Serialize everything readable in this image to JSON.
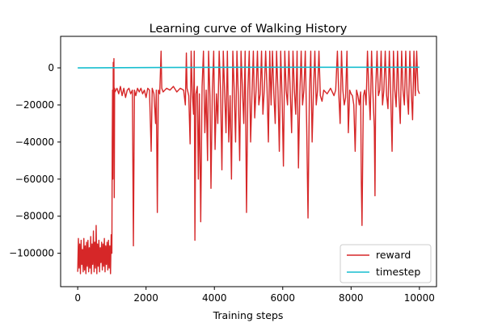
{
  "chart_data": {
    "type": "line",
    "title": "Learning curve of Walking History",
    "xlabel": "Training steps",
    "ylabel": "",
    "xlim": [
      -500,
      10500
    ],
    "ylim": [
      -118000,
      17000
    ],
    "xticks": [
      0,
      2000,
      4000,
      6000,
      8000,
      10000
    ],
    "yticks": [
      0,
      -20000,
      -40000,
      -60000,
      -80000,
      -100000
    ],
    "ytick_labels": [
      "0",
      "−20000",
      "−40000",
      "−60000",
      "−80000",
      "−100000"
    ],
    "grid": false,
    "legend_position": "lower-right",
    "series": [
      {
        "name": "reward",
        "color": "#d62728",
        "points": [
          [
            0,
            -110000
          ],
          [
            20,
            -92000
          ],
          [
            40,
            -108000
          ],
          [
            60,
            -95000
          ],
          [
            80,
            -111000
          ],
          [
            100,
            -93000
          ],
          [
            120,
            -106000
          ],
          [
            140,
            -98000
          ],
          [
            160,
            -110000
          ],
          [
            180,
            -92000
          ],
          [
            200,
            -109000
          ],
          [
            220,
            -96000
          ],
          [
            240,
            -111000
          ],
          [
            260,
            -94000
          ],
          [
            280,
            -107000
          ],
          [
            300,
            -93000
          ],
          [
            320,
            -110000
          ],
          [
            340,
            -97000
          ],
          [
            360,
            -108000
          ],
          [
            380,
            -91000
          ],
          [
            400,
            -111000
          ],
          [
            420,
            -95000
          ],
          [
            440,
            -106000
          ],
          [
            460,
            -88000
          ],
          [
            480,
            -110000
          ],
          [
            500,
            -94000
          ],
          [
            520,
            -108000
          ],
          [
            540,
            -85000
          ],
          [
            560,
            -111000
          ],
          [
            580,
            -95000
          ],
          [
            600,
            -107000
          ],
          [
            620,
            -93000
          ],
          [
            640,
            -110000
          ],
          [
            660,
            -97000
          ],
          [
            680,
            -105000
          ],
          [
            700,
            -94000
          ],
          [
            720,
            -109000
          ],
          [
            740,
            -95000
          ],
          [
            760,
            -107000
          ],
          [
            780,
            -92000
          ],
          [
            800,
            -110000
          ],
          [
            820,
            -96000
          ],
          [
            840,
            -106000
          ],
          [
            860,
            -94000
          ],
          [
            880,
            -109000
          ],
          [
            900,
            -93000
          ],
          [
            920,
            -108000
          ],
          [
            940,
            -96000
          ],
          [
            960,
            -111000
          ],
          [
            980,
            -90000
          ],
          [
            1000,
            -100000
          ],
          [
            1010,
            -40000
          ],
          [
            1020,
            -12000
          ],
          [
            1030,
            -60000
          ],
          [
            1040,
            3000
          ],
          [
            1050,
            -30000
          ],
          [
            1060,
            5000
          ],
          [
            1070,
            -70000
          ],
          [
            1080,
            -11000
          ],
          [
            1090,
            -13000
          ],
          [
            1150,
            -11000
          ],
          [
            1200,
            -14000
          ],
          [
            1250,
            -10000
          ],
          [
            1300,
            -15000
          ],
          [
            1350,
            -11000
          ],
          [
            1400,
            -16000
          ],
          [
            1450,
            -12000
          ],
          [
            1500,
            -11000
          ],
          [
            1550,
            -14000
          ],
          [
            1600,
            -12000
          ],
          [
            1630,
            -96000
          ],
          [
            1660,
            -12000
          ],
          [
            1700,
            -15000
          ],
          [
            1750,
            -11000
          ],
          [
            1800,
            -13000
          ],
          [
            1850,
            -11000
          ],
          [
            1900,
            -14000
          ],
          [
            1950,
            -12000
          ],
          [
            2000,
            -16000
          ],
          [
            2050,
            -11000
          ],
          [
            2100,
            -12000
          ],
          [
            2150,
            -45000
          ],
          [
            2180,
            -11000
          ],
          [
            2230,
            -14000
          ],
          [
            2280,
            -30000
          ],
          [
            2300,
            -12000
          ],
          [
            2330,
            -78000
          ],
          [
            2360,
            -12000
          ],
          [
            2400,
            -14000
          ],
          [
            2440,
            9000
          ],
          [
            2460,
            -11000
          ],
          [
            2500,
            -13000
          ],
          [
            2600,
            -11000
          ],
          [
            2700,
            -12000
          ],
          [
            2800,
            -10000
          ],
          [
            2900,
            -13000
          ],
          [
            3000,
            -11000
          ],
          [
            3100,
            -12000
          ],
          [
            3150,
            -20000
          ],
          [
            3180,
            8000
          ],
          [
            3200,
            -11000
          ],
          [
            3250,
            -15000
          ],
          [
            3290,
            -41000
          ],
          [
            3320,
            9000
          ],
          [
            3350,
            -12000
          ],
          [
            3390,
            -25000
          ],
          [
            3410,
            9000
          ],
          [
            3430,
            -93000
          ],
          [
            3460,
            -14000
          ],
          [
            3500,
            -10000
          ],
          [
            3530,
            -60000
          ],
          [
            3560,
            -14000
          ],
          [
            3600,
            -83000
          ],
          [
            3640,
            -10000
          ],
          [
            3680,
            9000
          ],
          [
            3720,
            -35000
          ],
          [
            3760,
            -12000
          ],
          [
            3800,
            -50000
          ],
          [
            3830,
            9000
          ],
          [
            3870,
            -15000
          ],
          [
            3900,
            -65000
          ],
          [
            3940,
            -12000
          ],
          [
            3980,
            9000
          ],
          [
            4020,
            -44000
          ],
          [
            4060,
            -14000
          ],
          [
            4100,
            -30000
          ],
          [
            4140,
            9000
          ],
          [
            4180,
            -12000
          ],
          [
            4220,
            -55000
          ],
          [
            4260,
            9000
          ],
          [
            4300,
            -13000
          ],
          [
            4340,
            -35000
          ],
          [
            4380,
            9000
          ],
          [
            4420,
            -40000
          ],
          [
            4460,
            -15000
          ],
          [
            4500,
            -60000
          ],
          [
            4540,
            9000
          ],
          [
            4580,
            -12000
          ],
          [
            4620,
            -40000
          ],
          [
            4660,
            9000
          ],
          [
            4700,
            -15000
          ],
          [
            4740,
            -50000
          ],
          [
            4780,
            9000
          ],
          [
            4820,
            -11000
          ],
          [
            4860,
            -30000
          ],
          [
            4900,
            9000
          ],
          [
            4940,
            -78000
          ],
          [
            4980,
            -12000
          ],
          [
            5020,
            9000
          ],
          [
            5060,
            -40000
          ],
          [
            5100,
            -14000
          ],
          [
            5140,
            9000
          ],
          [
            5180,
            -27000
          ],
          [
            5220,
            -12000
          ],
          [
            5260,
            9000
          ],
          [
            5300,
            -20000
          ],
          [
            5340,
            -14000
          ],
          [
            5380,
            9000
          ],
          [
            5420,
            -25000
          ],
          [
            5460,
            -12000
          ],
          [
            5500,
            9000
          ],
          [
            5540,
            -11000
          ],
          [
            5580,
            -40000
          ],
          [
            5620,
            9000
          ],
          [
            5660,
            -20000
          ],
          [
            5700,
            9000
          ],
          [
            5740,
            -14000
          ],
          [
            5780,
            -30000
          ],
          [
            5820,
            9000
          ],
          [
            5860,
            -12000
          ],
          [
            5900,
            -45000
          ],
          [
            5940,
            9000
          ],
          [
            5980,
            -15000
          ],
          [
            6020,
            -53000
          ],
          [
            6060,
            9000
          ],
          [
            6100,
            -12000
          ],
          [
            6140,
            -20000
          ],
          [
            6180,
            9000
          ],
          [
            6220,
            -13000
          ],
          [
            6260,
            -35000
          ],
          [
            6300,
            9000
          ],
          [
            6340,
            -12000
          ],
          [
            6380,
            -25000
          ],
          [
            6420,
            9000
          ],
          [
            6460,
            -54000
          ],
          [
            6500,
            -14000
          ],
          [
            6540,
            9000
          ],
          [
            6580,
            -20000
          ],
          [
            6620,
            -12000
          ],
          [
            6660,
            9000
          ],
          [
            6700,
            -30000
          ],
          [
            6740,
            -81000
          ],
          [
            6780,
            -14000
          ],
          [
            6820,
            9000
          ],
          [
            6860,
            -40000
          ],
          [
            6900,
            -12000
          ],
          [
            6940,
            9000
          ],
          [
            6980,
            -20000
          ],
          [
            7020,
            -12000
          ],
          [
            7060,
            9000
          ],
          [
            7100,
            -15000
          ],
          [
            7150,
            -18000
          ],
          [
            7200,
            -12000
          ],
          [
            7300,
            -14000
          ],
          [
            7400,
            -11000
          ],
          [
            7500,
            -15000
          ],
          [
            7550,
            -12000
          ],
          [
            7600,
            9000
          ],
          [
            7640,
            -14000
          ],
          [
            7680,
            -30000
          ],
          [
            7720,
            9000
          ],
          [
            7760,
            -12000
          ],
          [
            7800,
            -20000
          ],
          [
            7840,
            -16000
          ],
          [
            7880,
            9000
          ],
          [
            7920,
            -35000
          ],
          [
            7960,
            -12000
          ],
          [
            8000,
            -14000
          ],
          [
            8040,
            -15000
          ],
          [
            8080,
            -20000
          ],
          [
            8120,
            -45000
          ],
          [
            8160,
            -12000
          ],
          [
            8200,
            -15000
          ],
          [
            8240,
            -20000
          ],
          [
            8280,
            -13000
          ],
          [
            8300,
            -62000
          ],
          [
            8320,
            -85000
          ],
          [
            8340,
            -50000
          ],
          [
            8360,
            -15000
          ],
          [
            8400,
            -12000
          ],
          [
            8440,
            -20000
          ],
          [
            8480,
            9000
          ],
          [
            8520,
            -12000
          ],
          [
            8560,
            -28000
          ],
          [
            8600,
            9000
          ],
          [
            8640,
            -14000
          ],
          [
            8680,
            -32000
          ],
          [
            8700,
            -69000
          ],
          [
            8720,
            -12000
          ],
          [
            8760,
            9000
          ],
          [
            8800,
            -15000
          ],
          [
            8840,
            -12000
          ],
          [
            8880,
            9000
          ],
          [
            8920,
            -20000
          ],
          [
            8960,
            -12000
          ],
          [
            9000,
            9000
          ],
          [
            9040,
            -15000
          ],
          [
            9080,
            -22000
          ],
          [
            9120,
            9000
          ],
          [
            9160,
            -14000
          ],
          [
            9200,
            -45000
          ],
          [
            9240,
            9000
          ],
          [
            9280,
            -12000
          ],
          [
            9320,
            -21000
          ],
          [
            9360,
            9000
          ],
          [
            9400,
            -15000
          ],
          [
            9440,
            -30000
          ],
          [
            9480,
            9000
          ],
          [
            9520,
            -12000
          ],
          [
            9560,
            -20000
          ],
          [
            9600,
            9000
          ],
          [
            9640,
            -14000
          ],
          [
            9680,
            -25000
          ],
          [
            9720,
            9000
          ],
          [
            9760,
            -12000
          ],
          [
            9800,
            -28000
          ],
          [
            9840,
            9000
          ],
          [
            9880,
            -15000
          ],
          [
            9920,
            9000
          ],
          [
            9960,
            -12000
          ],
          [
            10000,
            -14000
          ]
        ]
      },
      {
        "name": "timestep",
        "color": "#17becf",
        "points": [
          [
            0,
            0
          ],
          [
            2500,
            200
          ],
          [
            5000,
            300
          ],
          [
            7500,
            300
          ],
          [
            10000,
            300
          ]
        ]
      }
    ]
  }
}
